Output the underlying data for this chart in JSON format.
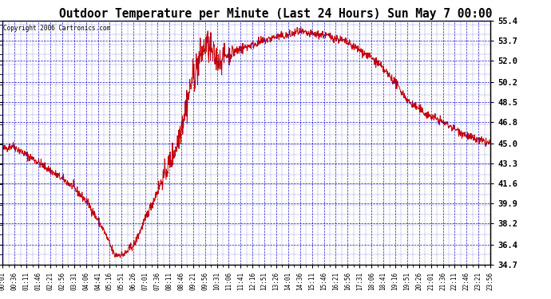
{
  "title": "Outdoor Temperature per Minute (Last 24 Hours) Sun May 7 00:00",
  "copyright_text": "Copyright 2006 Cartronics.com",
  "yticks": [
    34.7,
    36.4,
    38.2,
    39.9,
    41.6,
    43.3,
    45.0,
    46.8,
    48.5,
    50.2,
    52.0,
    53.7,
    55.4
  ],
  "ymin": 34.7,
  "ymax": 55.4,
  "line_color": "#cc0000",
  "grid_color": "#0000cc",
  "xtick_labels": [
    "00:01",
    "00:36",
    "01:11",
    "01:46",
    "02:21",
    "02:56",
    "03:31",
    "04:06",
    "04:41",
    "05:16",
    "05:51",
    "06:26",
    "07:01",
    "07:36",
    "08:11",
    "08:46",
    "09:21",
    "09:56",
    "10:31",
    "11:06",
    "11:41",
    "12:16",
    "12:51",
    "13:26",
    "14:01",
    "14:36",
    "15:11",
    "15:46",
    "16:21",
    "16:56",
    "17:31",
    "18:06",
    "18:41",
    "19:16",
    "19:51",
    "20:26",
    "21:01",
    "21:36",
    "22:11",
    "22:46",
    "23:21",
    "23:56"
  ],
  "control_points_t": [
    0,
    30,
    60,
    100,
    150,
    200,
    250,
    300,
    330,
    360,
    390,
    420,
    450,
    480,
    510,
    540,
    560,
    580,
    600,
    620,
    640,
    660,
    700,
    750,
    800,
    850,
    870,
    900,
    950,
    1000,
    1050,
    1100,
    1150,
    1200,
    1250,
    1300,
    1350,
    1380,
    1410,
    1440
  ],
  "control_points_v": [
    44.5,
    44.8,
    44.2,
    43.5,
    42.5,
    41.5,
    40.0,
    37.5,
    35.5,
    35.6,
    36.5,
    38.5,
    40.5,
    42.5,
    44.5,
    48.0,
    50.5,
    52.0,
    53.5,
    52.5,
    52.0,
    52.5,
    53.0,
    53.5,
    54.0,
    54.2,
    54.5,
    54.3,
    54.2,
    53.8,
    53.0,
    52.0,
    50.5,
    48.5,
    47.5,
    46.8,
    46.0,
    45.5,
    45.2,
    45.0
  ]
}
